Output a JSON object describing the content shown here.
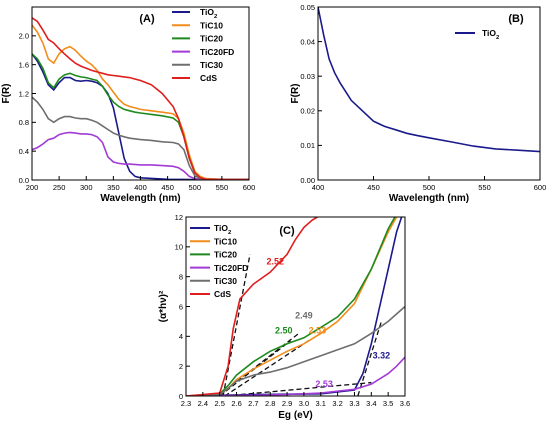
{
  "chart_data": [
    {
      "panel": "(A)",
      "type": "line",
      "xlabel": "Wavelength (nm)",
      "ylabel": "F(R)",
      "xlim": [
        200,
        600
      ],
      "ylim": [
        0,
        2.4
      ],
      "xticks": [
        "200",
        "250",
        "300",
        "350",
        "400",
        "450",
        "500",
        "550",
        "600"
      ],
      "yticks": [
        "0.0",
        "0.4",
        "0.8",
        "1.2",
        "1.6",
        "2.0"
      ],
      "legend_position": "top-right",
      "series": [
        {
          "name": "TiO2",
          "color": "#1a1a8c",
          "x": [
            200,
            210,
            220,
            230,
            240,
            250,
            260,
            270,
            280,
            290,
            300,
            310,
            320,
            330,
            340,
            350,
            360,
            370,
            380,
            390,
            400,
            450,
            500,
            550,
            600
          ],
          "y": [
            1.75,
            1.65,
            1.5,
            1.32,
            1.25,
            1.35,
            1.42,
            1.42,
            1.38,
            1.37,
            1.38,
            1.37,
            1.35,
            1.3,
            1.2,
            1.0,
            0.65,
            0.3,
            0.12,
            0.05,
            0.03,
            0.01,
            0.005,
            0.005,
            0.005
          ]
        },
        {
          "name": "TiC10",
          "color": "#f28c1a",
          "x": [
            200,
            210,
            220,
            230,
            240,
            250,
            260,
            270,
            280,
            290,
            300,
            310,
            320,
            330,
            340,
            350,
            360,
            370,
            380,
            390,
            400,
            420,
            440,
            460,
            470,
            480,
            490,
            500,
            510,
            520,
            550,
            600
          ],
          "y": [
            2.15,
            2.05,
            1.9,
            1.68,
            1.62,
            1.75,
            1.82,
            1.85,
            1.8,
            1.72,
            1.65,
            1.6,
            1.52,
            1.4,
            1.32,
            1.22,
            1.12,
            1.05,
            1.02,
            1.0,
            0.98,
            0.96,
            0.94,
            0.92,
            0.85,
            0.65,
            0.35,
            0.12,
            0.05,
            0.02,
            0.01,
            0.01
          ]
        },
        {
          "name": "TiC20",
          "color": "#1e8a1e",
          "x": [
            200,
            210,
            220,
            230,
            240,
            250,
            260,
            270,
            280,
            290,
            300,
            310,
            320,
            330,
            340,
            350,
            360,
            370,
            380,
            390,
            400,
            420,
            440,
            460,
            470,
            480,
            490,
            500,
            510,
            520,
            550,
            600
          ],
          "y": [
            1.75,
            1.68,
            1.55,
            1.35,
            1.28,
            1.4,
            1.46,
            1.48,
            1.45,
            1.43,
            1.42,
            1.4,
            1.38,
            1.3,
            1.18,
            1.08,
            1.02,
            0.98,
            0.96,
            0.94,
            0.93,
            0.91,
            0.89,
            0.86,
            0.8,
            0.6,
            0.3,
            0.1,
            0.03,
            0.01,
            0.01,
            0.01
          ]
        },
        {
          "name": "TiC20FD",
          "color": "#a23ad6",
          "x": [
            200,
            210,
            220,
            230,
            240,
            250,
            260,
            270,
            280,
            290,
            300,
            310,
            320,
            330,
            340,
            350,
            360,
            370,
            380,
            400,
            420,
            440,
            460,
            470,
            480,
            490,
            500,
            510,
            520,
            550,
            600
          ],
          "y": [
            0.42,
            0.45,
            0.5,
            0.56,
            0.58,
            0.63,
            0.65,
            0.66,
            0.65,
            0.64,
            0.64,
            0.63,
            0.6,
            0.52,
            0.32,
            0.25,
            0.23,
            0.22,
            0.22,
            0.21,
            0.21,
            0.2,
            0.19,
            0.17,
            0.12,
            0.05,
            0.02,
            0.01,
            0.01,
            0.005,
            0.005
          ]
        },
        {
          "name": "TiC30",
          "color": "#6e6e6e",
          "x": [
            200,
            210,
            220,
            230,
            240,
            250,
            260,
            270,
            280,
            290,
            300,
            310,
            320,
            330,
            340,
            350,
            360,
            370,
            380,
            400,
            420,
            440,
            460,
            470,
            480,
            490,
            500,
            510,
            520,
            550,
            600
          ],
          "y": [
            1.15,
            1.08,
            0.98,
            0.85,
            0.8,
            0.85,
            0.88,
            0.88,
            0.86,
            0.85,
            0.85,
            0.83,
            0.8,
            0.75,
            0.7,
            0.65,
            0.62,
            0.6,
            0.58,
            0.56,
            0.55,
            0.53,
            0.52,
            0.5,
            0.42,
            0.2,
            0.06,
            0.02,
            0.01,
            0.005,
            0.005
          ]
        },
        {
          "name": "CdS",
          "color": "#e01e1e",
          "x": [
            200,
            210,
            220,
            230,
            240,
            250,
            260,
            270,
            280,
            290,
            300,
            310,
            320,
            330,
            340,
            350,
            360,
            370,
            380,
            400,
            420,
            440,
            460,
            470,
            480,
            490,
            500,
            510,
            520,
            550,
            600
          ],
          "y": [
            2.25,
            2.2,
            2.08,
            1.95,
            1.9,
            1.82,
            1.75,
            1.68,
            1.62,
            1.58,
            1.55,
            1.52,
            1.5,
            1.48,
            1.46,
            1.45,
            1.44,
            1.43,
            1.42,
            1.38,
            1.32,
            1.2,
            1.02,
            0.85,
            0.6,
            0.3,
            0.1,
            0.03,
            0.01,
            0.005,
            0.005
          ]
        }
      ]
    },
    {
      "panel": "(B)",
      "type": "line",
      "xlabel": "Wavelength (nm)",
      "ylabel": "F(R)",
      "xlim": [
        400,
        600
      ],
      "ylim": [
        0,
        0.05
      ],
      "xticks": [
        "400",
        "450",
        "500",
        "550",
        "600"
      ],
      "yticks": [
        "0.00",
        "0.01",
        "0.02",
        "0.03",
        "0.04",
        "0.05"
      ],
      "legend_position": "top-right",
      "series": [
        {
          "name": "TiO2",
          "color": "#1a1a8c",
          "x": [
            400,
            405,
            410,
            415,
            420,
            430,
            440,
            450,
            460,
            470,
            480,
            490,
            500,
            520,
            540,
            560,
            580,
            600
          ],
          "y": [
            0.05,
            0.042,
            0.035,
            0.031,
            0.028,
            0.023,
            0.02,
            0.017,
            0.0155,
            0.0145,
            0.0135,
            0.0128,
            0.0122,
            0.011,
            0.0098,
            0.009,
            0.0086,
            0.0082
          ]
        }
      ]
    },
    {
      "panel": "(C)",
      "type": "line",
      "xlabel": "Eg (eV)",
      "ylabel": "(α*hν)²",
      "xlim": [
        2.3,
        3.6
      ],
      "ylim": [
        0,
        12
      ],
      "xticks": [
        "2.3",
        "2.4",
        "2.5",
        "2.6",
        "2.7",
        "2.8",
        "2.9",
        "3.0",
        "3.1",
        "3.2",
        "3.3",
        "3.4",
        "3.5",
        "3.6"
      ],
      "yticks": [
        "0",
        "2",
        "4",
        "6",
        "8",
        "10",
        "12"
      ],
      "legend_position": "top-left",
      "series": [
        {
          "name": "TiO2",
          "color": "#1a1a8c",
          "x": [
            2.3,
            2.5,
            2.7,
            2.9,
            3.1,
            3.3,
            3.35,
            3.4,
            3.45,
            3.5,
            3.55,
            3.58
          ],
          "y": [
            0.0,
            0.05,
            0.1,
            0.12,
            0.15,
            0.4,
            1.5,
            3.5,
            6.0,
            8.5,
            11.0,
            12.0
          ]
        },
        {
          "name": "TiC10",
          "color": "#f28c1a",
          "x": [
            2.3,
            2.5,
            2.55,
            2.6,
            2.7,
            2.8,
            2.9,
            3.0,
            3.1,
            3.2,
            3.3,
            3.4,
            3.5,
            3.55
          ],
          "y": [
            0.0,
            0.1,
            0.5,
            1.1,
            1.8,
            2.4,
            3.0,
            3.5,
            4.2,
            5.0,
            6.2,
            8.5,
            11.0,
            12.0
          ]
        },
        {
          "name": "TiC20",
          "color": "#1e8a1e",
          "x": [
            2.3,
            2.5,
            2.55,
            2.6,
            2.7,
            2.8,
            2.9,
            3.0,
            3.1,
            3.2,
            3.3,
            3.4,
            3.5,
            3.54
          ],
          "y": [
            0.0,
            0.15,
            0.7,
            1.4,
            2.3,
            3.0,
            3.5,
            3.9,
            4.6,
            5.3,
            6.5,
            8.5,
            11.2,
            12.0
          ]
        },
        {
          "name": "TiC20FD",
          "color": "#a23ad6",
          "x": [
            2.3,
            2.5,
            2.7,
            2.9,
            3.1,
            3.3,
            3.4,
            3.5,
            3.55,
            3.6
          ],
          "y": [
            0.0,
            0.02,
            0.05,
            0.1,
            0.2,
            0.45,
            0.8,
            1.5,
            2.0,
            2.6
          ]
        },
        {
          "name": "TiC30",
          "color": "#6e6e6e",
          "x": [
            2.3,
            2.5,
            2.55,
            2.6,
            2.7,
            2.8,
            2.9,
            3.0,
            3.1,
            3.2,
            3.3,
            3.4,
            3.5,
            3.6
          ],
          "y": [
            0.0,
            0.1,
            0.5,
            1.0,
            1.4,
            1.6,
            1.9,
            2.3,
            2.7,
            3.1,
            3.5,
            4.2,
            5.0,
            6.0
          ]
        },
        {
          "name": "CdS",
          "color": "#e01e1e",
          "x": [
            2.3,
            2.5,
            2.55,
            2.58,
            2.62,
            2.7,
            2.8,
            2.9,
            2.95,
            3.0,
            3.05,
            3.08
          ],
          "y": [
            0.0,
            0.2,
            2.0,
            4.5,
            6.5,
            7.5,
            8.3,
            9.5,
            10.5,
            11.3,
            11.8,
            12.0
          ]
        }
      ],
      "annotations": [
        {
          "text": "2.52",
          "color": "#e01e1e",
          "x": 2.83,
          "y": 8.8
        },
        {
          "text": "2.49",
          "color": "#6e6e6e",
          "x": 3.0,
          "y": 5.2
        },
        {
          "text": "2.50",
          "color": "#1e8a1e",
          "x": 2.88,
          "y": 4.2
        },
        {
          "text": "2.53",
          "color": "#f28c1a",
          "x": 3.08,
          "y": 4.2
        },
        {
          "text": "3.32",
          "color": "#1a1a8c",
          "x": 3.46,
          "y": 2.5
        },
        {
          "text": "2.53",
          "color": "#a23ad6",
          "x": 3.12,
          "y": 0.6
        }
      ],
      "fit_lines": [
        {
          "x": [
            2.52,
            2.68
          ],
          "y": [
            0,
            9.5
          ]
        },
        {
          "x": [
            2.49,
            2.97
          ],
          "y": [
            0,
            4.2
          ]
        },
        {
          "x": [
            2.5,
            2.92
          ],
          "y": [
            0,
            3.7
          ]
        },
        {
          "x": [
            2.53,
            3.04
          ],
          "y": [
            0,
            3.8
          ]
        },
        {
          "x": [
            3.32,
            3.46
          ],
          "y": [
            0,
            5.0
          ]
        },
        {
          "x": [
            2.53,
            3.4
          ],
          "y": [
            0,
            0.9
          ]
        }
      ]
    }
  ]
}
